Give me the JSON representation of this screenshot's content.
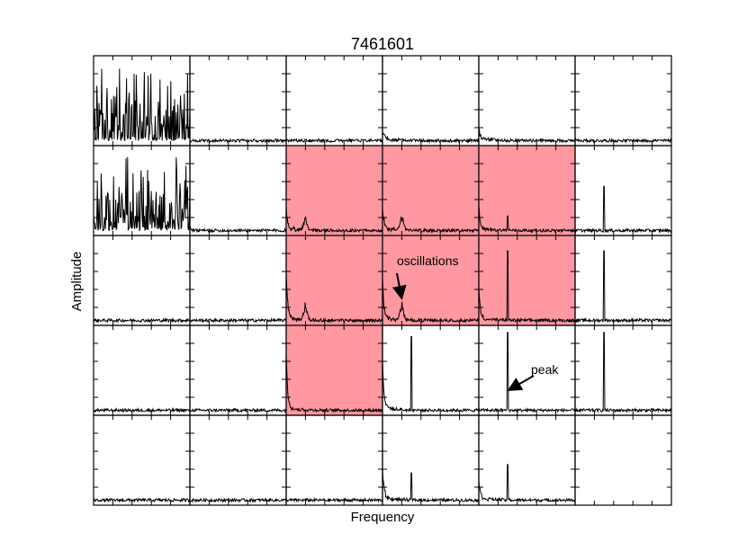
{
  "chart_data": {
    "type": "line",
    "title": "7461601",
    "xlabel": "Frequency",
    "ylabel": "Amplitude",
    "grid": false,
    "rows": 5,
    "cols": 6,
    "highlight_color": "#ff98a0",
    "highlighted_panels": [
      [
        1,
        2
      ],
      [
        1,
        3
      ],
      [
        1,
        4
      ],
      [
        2,
        2
      ],
      [
        2,
        3
      ],
      [
        2,
        4
      ],
      [
        3,
        2
      ]
    ],
    "annotations": [
      {
        "text": "oscillations",
        "panel": [
          2,
          3
        ],
        "points_to": "oscillation hump"
      },
      {
        "text": "peak",
        "panel": [
          3,
          4
        ],
        "points_to": "narrow peak"
      }
    ],
    "panels": [
      [
        {
          "kind": "noise-high"
        },
        {
          "kind": "flat"
        },
        {
          "kind": "flat"
        },
        {
          "kind": "low-freq",
          "spike": 0.1
        },
        {
          "kind": "low-freq",
          "spike": 0.1
        },
        {
          "kind": "flat",
          "spike": 0.05
        }
      ],
      [
        {
          "kind": "noise-high"
        },
        {
          "kind": "flat",
          "spike": 0.05
        },
        {
          "kind": "low-freq",
          "spike": 0.25,
          "hump": 0.18
        },
        {
          "kind": "low-freq",
          "spike": 0.25,
          "hump": 0.18
        },
        {
          "kind": "low-freq",
          "spike": 0.25,
          "line_pos": 0.3,
          "line_amp": 0.2
        },
        {
          "kind": "flat",
          "line_pos": 0.3,
          "line_amp": 0.55
        }
      ],
      [
        {
          "kind": "flat"
        },
        {
          "kind": "flat"
        },
        {
          "kind": "low-freq",
          "spike": 0.55,
          "hump": 0.22
        },
        {
          "kind": "low-freq",
          "spike": 0.45,
          "hump": 0.22
        },
        {
          "kind": "low-freq",
          "spike": 0.35,
          "line_pos": 0.3,
          "line_amp": 0.85
        },
        {
          "kind": "flat",
          "line_pos": 0.3,
          "line_amp": 0.85
        }
      ],
      [
        {
          "kind": "flat"
        },
        {
          "kind": "flat"
        },
        {
          "kind": "low-freq",
          "spike": 0.65
        },
        {
          "kind": "low-freq",
          "spike": 0.55,
          "line_pos": 0.3,
          "line_amp": 0.9
        },
        {
          "kind": "flat",
          "line_pos": 0.3,
          "line_amp": 0.95
        },
        {
          "kind": "flat",
          "line_pos": 0.3,
          "line_amp": 0.95
        }
      ],
      [
        {
          "kind": "flat"
        },
        {
          "kind": "flat"
        },
        {
          "kind": "flat"
        },
        {
          "kind": "low-freq",
          "spike": 0.35,
          "line_pos": 0.3,
          "line_amp": 0.35
        },
        {
          "kind": "low-freq",
          "spike": 0.2,
          "line_pos": 0.3,
          "line_amp": 0.45
        },
        {
          "kind": "empty"
        }
      ]
    ]
  }
}
